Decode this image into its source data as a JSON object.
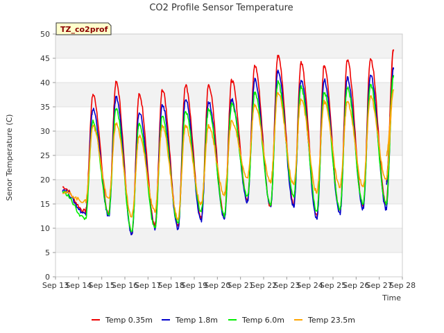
{
  "chart_data": {
    "type": "line",
    "title": "CO2 Profile Sensor Temperature",
    "xlabel": "Time",
    "ylabel": "Senor Temperature (C)",
    "tag": "TZ_co2prof",
    "ylim": [
      0,
      50
    ],
    "yticks": [
      0,
      5,
      10,
      15,
      20,
      25,
      30,
      35,
      40,
      45,
      50
    ],
    "xlim": [
      "Sep 13",
      "Sep 28"
    ],
    "xticks": [
      "Sep 13",
      "Sep 14",
      "Sep 15",
      "Sep 16",
      "Sep 17",
      "Sep 18",
      "Sep 19",
      "Sep 20",
      "Sep 21",
      "Sep 22",
      "Sep 23",
      "Sep 24",
      "Sep 25",
      "Sep 26",
      "Sep 27",
      "Sep 28"
    ],
    "grid": true,
    "legend_position": "bottom",
    "x_start": "Sep 13.3",
    "x_end": "Sep 27.3",
    "daily_values_note": "per-day minimum (before morning rise) and afternoon maximum, in °C",
    "series": [
      {
        "name": "Temp 0.35m",
        "color": "#ee0000",
        "start": 18.5,
        "mins": [
          13.5,
          13.0,
          9.0,
          10.5,
          10.5,
          12.0,
          12.5,
          16.0,
          14.5,
          15.0,
          12.5,
          13.5,
          14.5,
          15.0
        ],
        "maxs": [
          37.5,
          40.0,
          37.5,
          38.5,
          39.5,
          39.5,
          40.5,
          43.5,
          45.5,
          44.0,
          43.5,
          44.5,
          45.0,
          47.0
        ],
        "end": 19.5
      },
      {
        "name": "Temp 1.8m",
        "color": "#0000cc",
        "start": 18.0,
        "mins": [
          13.0,
          12.5,
          8.8,
          10.0,
          10.0,
          11.5,
          12.0,
          15.5,
          14.5,
          14.5,
          12.0,
          13.0,
          14.0,
          14.0
        ],
        "maxs": [
          34.5,
          37.0,
          34.0,
          35.5,
          36.5,
          36.0,
          36.5,
          40.5,
          42.5,
          40.5,
          40.5,
          41.0,
          41.5,
          43.0
        ],
        "end": 19.0
      },
      {
        "name": "Temp 6.0m",
        "color": "#00ee00",
        "start": 17.5,
        "mins": [
          12.0,
          13.0,
          9.5,
          10.0,
          11.0,
          13.5,
          12.5,
          16.5,
          15.0,
          16.5,
          13.5,
          14.0,
          15.0,
          15.0
        ],
        "maxs": [
          32.0,
          34.5,
          31.5,
          33.0,
          34.0,
          34.5,
          35.5,
          38.0,
          40.0,
          39.0,
          38.0,
          39.0,
          39.5,
          41.5
        ],
        "end": 20.0
      },
      {
        "name": "Temp 23.5m",
        "color": "#ffa500",
        "start": 17.5,
        "mins": [
          15.5,
          16.0,
          12.5,
          13.5,
          12.0,
          15.0,
          17.0,
          20.5,
          19.5,
          19.0,
          17.5,
          18.5,
          18.5,
          20.0
        ],
        "maxs": [
          31.0,
          31.5,
          29.0,
          31.0,
          31.0,
          31.0,
          32.0,
          35.5,
          38.0,
          36.5,
          36.0,
          36.0,
          37.0,
          38.5
        ],
        "end": 25.0
      }
    ]
  }
}
